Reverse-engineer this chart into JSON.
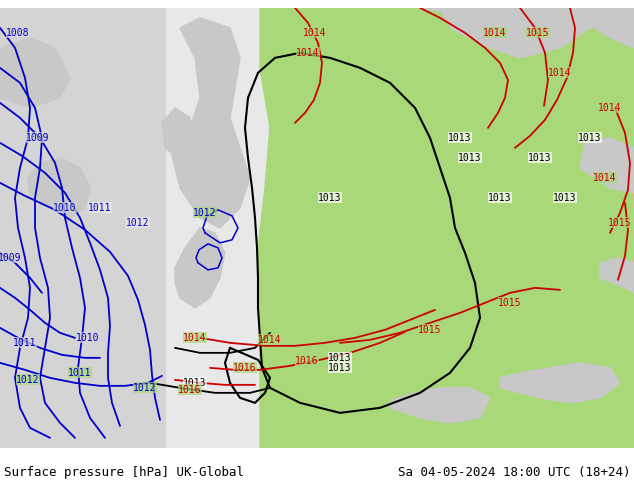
{
  "title_left": "Surface pressure [hPa] UK-Global",
  "title_right": "Sa 04-05-2024 18:00 UTC (18+24)",
  "bg_color_main": "#a8d878",
  "bg_color_ocean": "#d8d8d8",
  "bg_color_light": "#f0f0f0",
  "isobar_black_color": "#000000",
  "isobar_blue_color": "#0000cc",
  "isobar_red_color": "#cc0000",
  "label_fontsize": 8,
  "title_fontsize": 9,
  "figsize": [
    6.34,
    4.9
  ],
  "dpi": 100
}
